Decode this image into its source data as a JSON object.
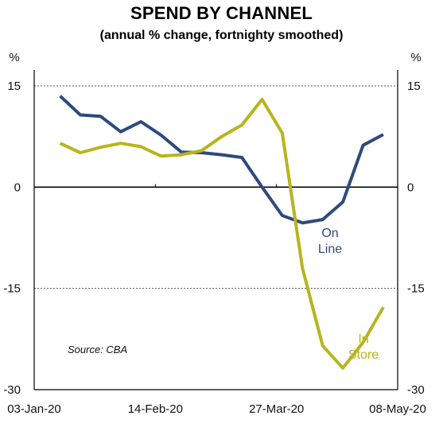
{
  "chart_data": {
    "type": "line",
    "title": "SPEND BY CHANNEL",
    "subtitle": "(annual % change, fortnighty smoothed)",
    "y_unit_left": "%",
    "y_unit_right": "%",
    "ylim": [
      -30,
      15
    ],
    "yticks": [
      15,
      0,
      -15,
      -30
    ],
    "grid": "dotted horizontal at 15 and -15; solid zero line",
    "xlim": [
      "2020-01-03",
      "2020-05-08"
    ],
    "xticks": [
      {
        "date": "2020-01-03",
        "label": "03-Jan-20"
      },
      {
        "date": "2020-02-14",
        "label": "14-Feb-20"
      },
      {
        "date": "2020-03-27",
        "label": "27-Mar-20"
      },
      {
        "date": "2020-05-08",
        "label": "08-May-20"
      }
    ],
    "source": "Source: CBA",
    "series": [
      {
        "name": "On Line",
        "label_lines": [
          "On",
          "Line"
        ],
        "color": "#2e4a7d",
        "points": [
          {
            "x": "2020-01-12",
            "y": 13.5
          },
          {
            "x": "2020-01-19",
            "y": 10.7
          },
          {
            "x": "2020-01-26",
            "y": 10.5
          },
          {
            "x": "2020-02-02",
            "y": 8.2
          },
          {
            "x": "2020-02-09",
            "y": 9.7
          },
          {
            "x": "2020-02-16",
            "y": 7.7
          },
          {
            "x": "2020-02-23",
            "y": 5.2
          },
          {
            "x": "2020-03-01",
            "y": 5.1
          },
          {
            "x": "2020-03-08",
            "y": 4.8
          },
          {
            "x": "2020-03-15",
            "y": 4.4
          },
          {
            "x": "2020-03-22",
            "y": 0.0
          },
          {
            "x": "2020-03-29",
            "y": -4.2
          },
          {
            "x": "2020-04-05",
            "y": -5.3
          },
          {
            "x": "2020-04-12",
            "y": -4.8
          },
          {
            "x": "2020-04-19",
            "y": -2.2
          },
          {
            "x": "2020-04-26",
            "y": 6.2
          },
          {
            "x": "2020-05-03",
            "y": 7.8
          }
        ]
      },
      {
        "name": "In Store",
        "label_lines": [
          "In",
          "Store"
        ],
        "color": "#b8b41c",
        "points": [
          {
            "x": "2020-01-12",
            "y": 6.5
          },
          {
            "x": "2020-01-19",
            "y": 5.1
          },
          {
            "x": "2020-01-26",
            "y": 5.9
          },
          {
            "x": "2020-02-02",
            "y": 6.5
          },
          {
            "x": "2020-02-09",
            "y": 6.0
          },
          {
            "x": "2020-02-16",
            "y": 4.6
          },
          {
            "x": "2020-02-23",
            "y": 4.8
          },
          {
            "x": "2020-03-01",
            "y": 5.4
          },
          {
            "x": "2020-03-08",
            "y": 7.5
          },
          {
            "x": "2020-03-15",
            "y": 9.2
          },
          {
            "x": "2020-03-22",
            "y": 13.0
          },
          {
            "x": "2020-03-29",
            "y": 8.0
          },
          {
            "x": "2020-04-05",
            "y": -12.0
          },
          {
            "x": "2020-04-12",
            "y": -23.5
          },
          {
            "x": "2020-04-19",
            "y": -26.8
          },
          {
            "x": "2020-04-26",
            "y": -23.0
          },
          {
            "x": "2020-05-03",
            "y": -17.8
          }
        ]
      }
    ]
  }
}
